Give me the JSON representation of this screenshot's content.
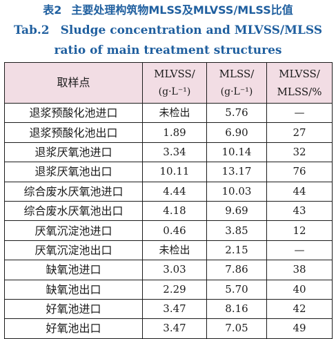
{
  "caption": {
    "cn_number": "表2",
    "cn_title": "主要处理构筑物MLSS及MLVSS/MLSS比值",
    "en_number": "Tab.2",
    "en_title_line1": "Sludge concentration and MLVSS/MLSS",
    "en_title_line2": "ratio of main treatment structures"
  },
  "table": {
    "headers": [
      {
        "line1": "取样点",
        "line2": ""
      },
      {
        "line1": "MLVSS/",
        "line2": "(g·L⁻¹)"
      },
      {
        "line1": "MLSS/",
        "line2": "(g·L⁻¹)"
      },
      {
        "line1": "MLVSS/",
        "line2": "MLSS/%"
      }
    ],
    "rows": [
      [
        "退浆预酸化池进口",
        "未检出",
        "5.76",
        "—"
      ],
      [
        "退浆预酸化池出口",
        "1.89",
        "6.90",
        "27"
      ],
      [
        "退浆厌氧池进口",
        "3.34",
        "10.14",
        "32"
      ],
      [
        "退浆厌氧池出口",
        "10.11",
        "13.17",
        "76"
      ],
      [
        "综合废水厌氧池进口",
        "4.44",
        "10.03",
        "44"
      ],
      [
        "综合废水厌氧池出口",
        "4.18",
        "9.69",
        "43"
      ],
      [
        "厌氧沉淀池进口",
        "0.46",
        "3.85",
        "12"
      ],
      [
        "厌氧沉淀池出口",
        "未检出",
        "2.15",
        "—"
      ],
      [
        "缺氧池进口",
        "3.03",
        "7.86",
        "38"
      ],
      [
        "缺氧池出口",
        "2.29",
        "5.70",
        "40"
      ],
      [
        "好氧池进口",
        "3.47",
        "8.16",
        "42"
      ],
      [
        "好氧池出口",
        "3.47",
        "7.05",
        "49"
      ]
    ]
  },
  "colors": {
    "caption": "#1f5f9f",
    "header_bg": "#f2dde4",
    "border": "#1a1a1a"
  }
}
